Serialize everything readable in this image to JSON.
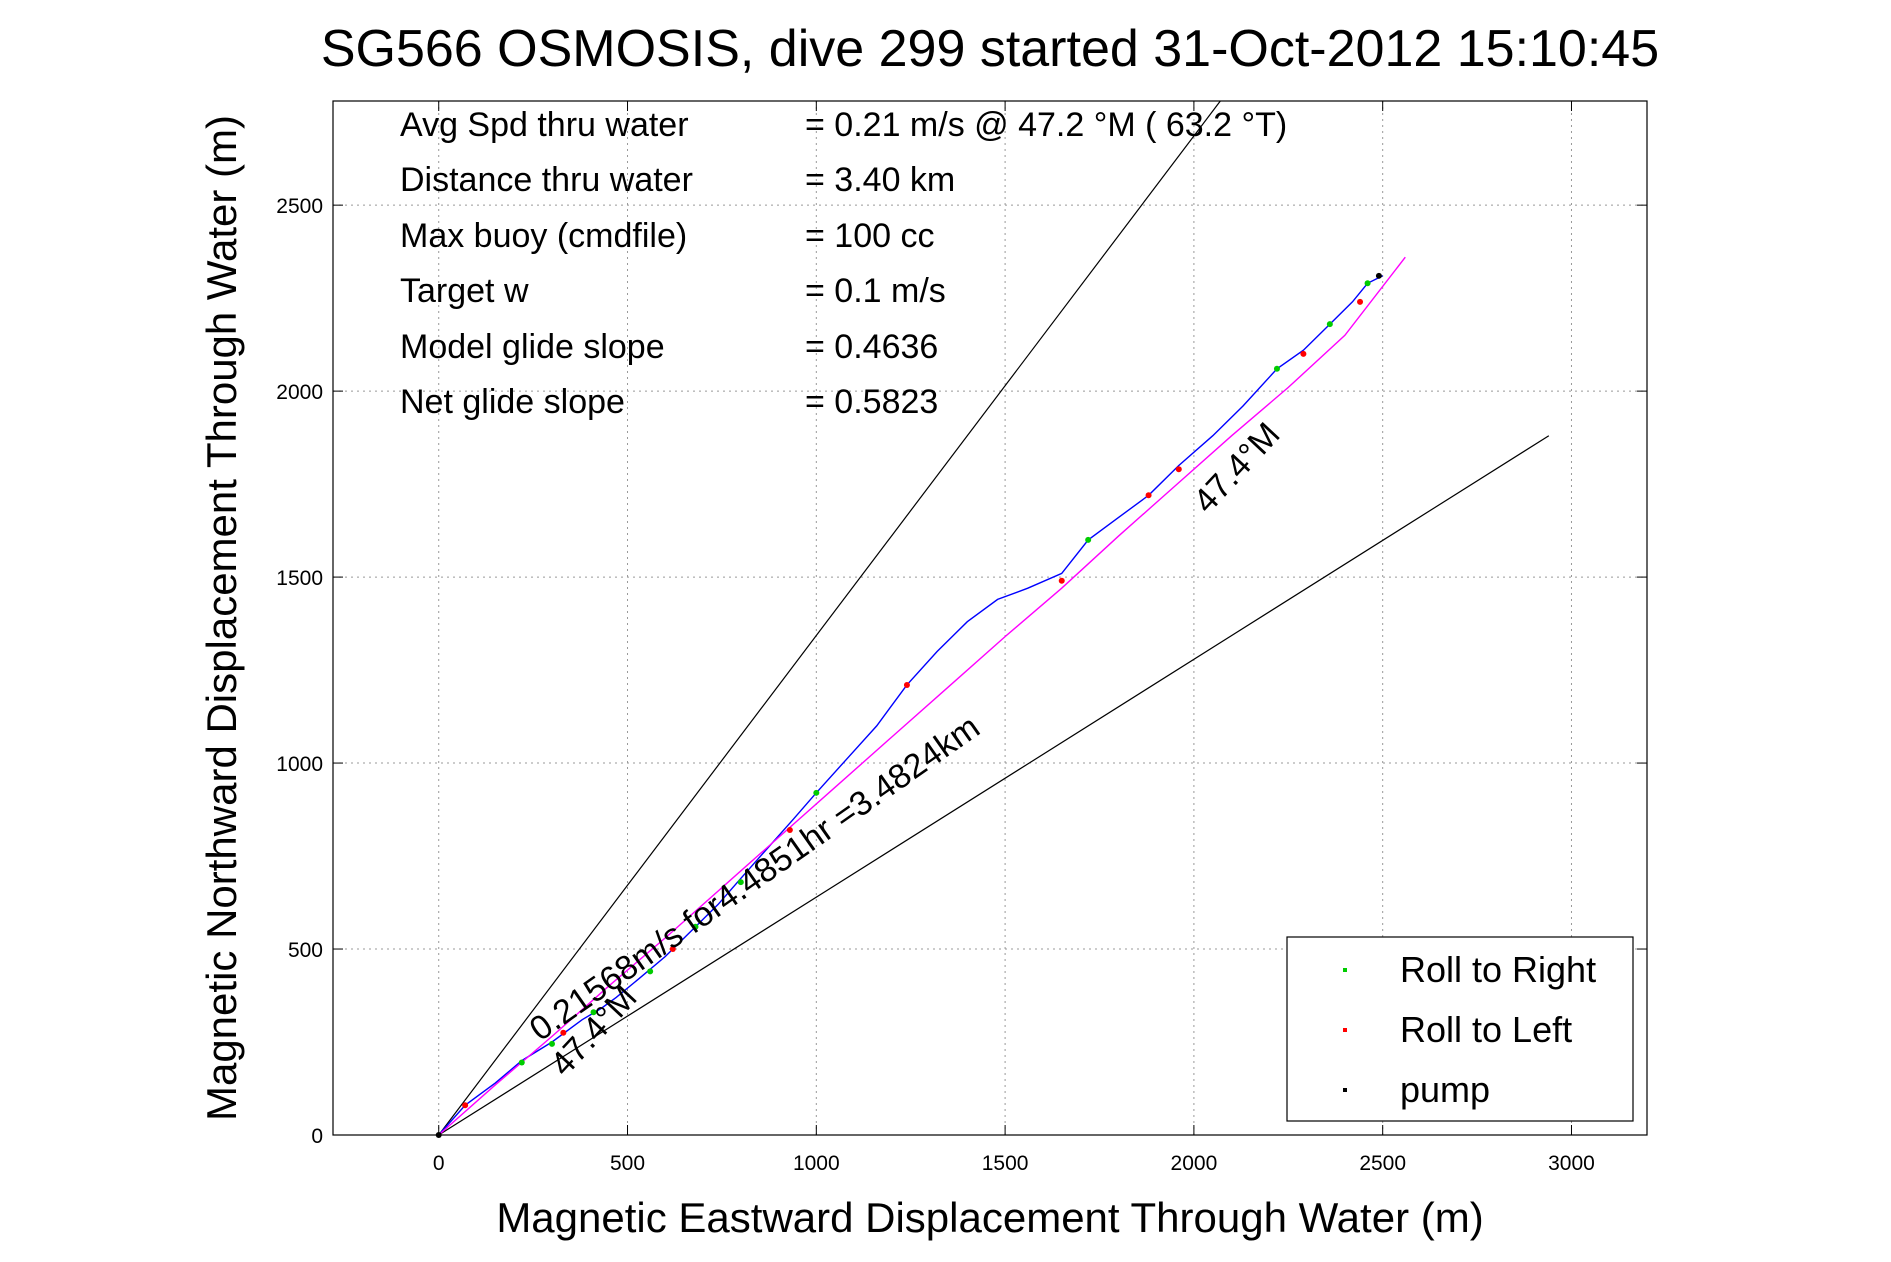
{
  "chart_data": {
    "type": "line",
    "title": "SG566 OSMOSIS, dive 299 started 31-Oct-2012 15:10:45",
    "xlabel": "Magnetic Eastward Displacement Through Water (m)",
    "ylabel": "Magnetic Northward Displacement Through Water (m)",
    "xlim": [
      -280,
      3200
    ],
    "ylim": [
      0,
      2780
    ],
    "xticks": [
      0,
      500,
      1000,
      1500,
      2000,
      2500,
      3000
    ],
    "yticks": [
      0,
      500,
      1000,
      1500,
      2000,
      2500
    ],
    "grid": true,
    "stats": [
      {
        "label": "Avg Spd thru water",
        "value": "=  0.21 m/s @  47.2 °M ( 63.2 °T)"
      },
      {
        "label": "Distance thru water",
        "value": "=  3.40 km"
      },
      {
        "label": "Max buoy (cmdfile)",
        "value": "= 100 cc"
      },
      {
        "label": "Target w",
        "value": "= 0.1 m/s"
      },
      {
        "label": "Model glide slope",
        "value": "= 0.4636"
      },
      {
        "label": "Net glide slope",
        "value": "= 0.5823"
      }
    ],
    "annotations": {
      "track_label": "0.21568m/s for4.4851hr =3.4824km",
      "upper_heading": "47.4°M",
      "lower_heading": "47.4°M"
    },
    "guide_lines": [
      {
        "x": [
          0,
          2070
        ],
        "y": [
          0,
          2780
        ]
      },
      {
        "x": [
          0,
          2940
        ],
        "y": [
          0,
          1880
        ]
      }
    ],
    "series": [
      {
        "color": "#0000ff",
        "x": [
          0,
          70,
          150,
          220,
          300,
          380,
          430,
          470,
          530,
          600,
          680,
          740,
          800,
          870,
          940,
          1000,
          1080,
          1160,
          1240,
          1320,
          1400,
          1480,
          1560,
          1650,
          1720,
          1800,
          1880,
          1960,
          2050,
          2130,
          2220,
          2290,
          2360,
          2420,
          2460,
          2500
        ],
        "y": [
          0,
          80,
          140,
          200,
          250,
          310,
          340,
          370,
          420,
          480,
          560,
          620,
          690,
          770,
          850,
          920,
          1010,
          1100,
          1210,
          1300,
          1380,
          1440,
          1470,
          1510,
          1600,
          1660,
          1720,
          1800,
          1880,
          1960,
          2060,
          2110,
          2180,
          2240,
          2290,
          2310
        ]
      },
      {
        "color": "#ff00ff",
        "x": [
          0,
          150,
          300,
          450,
          600,
          750,
          900,
          1050,
          1200,
          1350,
          1500,
          1650,
          1800,
          1950,
          2100,
          2250,
          2400,
          2560
        ],
        "y": [
          0,
          135,
          265,
          400,
          530,
          665,
          800,
          935,
          1070,
          1205,
          1340,
          1470,
          1610,
          1745,
          1880,
          2010,
          2150,
          2360
        ]
      }
    ],
    "markers": [
      {
        "name": "Roll to Right",
        "color": "#00cc00",
        "x": [
          220,
          300,
          410,
          560,
          680,
          800,
          1000,
          1720,
          2220,
          2360,
          2460
        ],
        "y": [
          195,
          245,
          330,
          440,
          560,
          680,
          920,
          1600,
          2060,
          2180,
          2290
        ]
      },
      {
        "name": "Roll to Left",
        "color": "#ff0000",
        "x": [
          70,
          330,
          620,
          930,
          1240,
          1650,
          1880,
          1960,
          2290,
          2440
        ],
        "y": [
          80,
          275,
          500,
          820,
          1210,
          1490,
          1720,
          1790,
          2100,
          2240
        ]
      },
      {
        "name": "pump",
        "color": "#000000",
        "x": [
          0,
          2490
        ],
        "y": [
          0,
          2310
        ]
      }
    ],
    "legend": {
      "position": "bottom-right",
      "entries": [
        {
          "label": "Roll to Right",
          "color": "#00cc00"
        },
        {
          "label": "Roll to Left",
          "color": "#ff0000"
        },
        {
          "label": "pump",
          "color": "#000000"
        }
      ]
    }
  }
}
